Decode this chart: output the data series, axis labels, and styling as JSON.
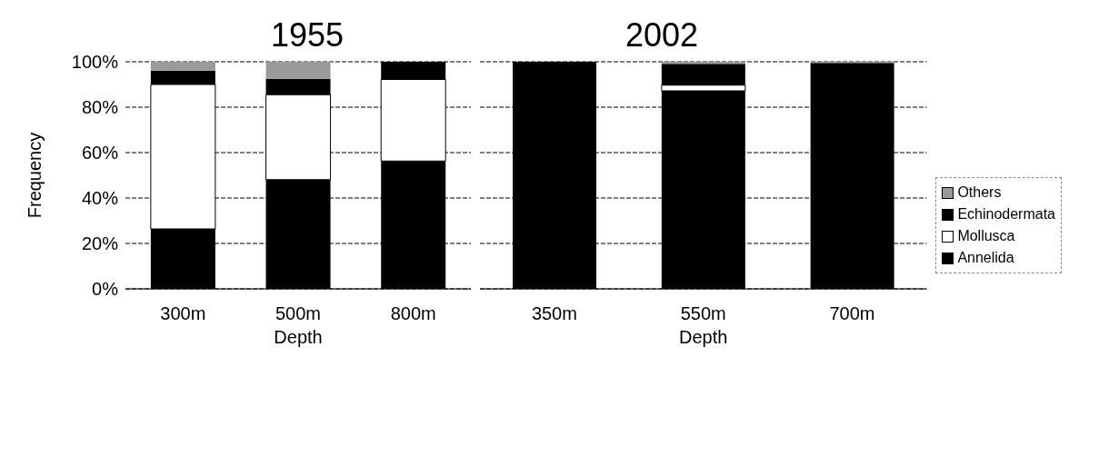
{
  "chart_data": [
    {
      "type": "bar",
      "title": "1955",
      "xlabel": "Depth",
      "ylabel": "Frequency",
      "categories": [
        "300m",
        "500m",
        "800m"
      ],
      "stacked": true,
      "grid": "y",
      "legend": false,
      "ylim": [
        0,
        100
      ],
      "yticks": [
        {
          "value": 0,
          "label": "0%"
        },
        {
          "value": 20,
          "label": "20%"
        },
        {
          "value": 40,
          "label": "40%"
        },
        {
          "value": 60,
          "label": "60%"
        },
        {
          "value": 80,
          "label": "80%"
        },
        {
          "value": 100,
          "label": "100%"
        }
      ],
      "series": [
        {
          "color": "#000000",
          "values": [
            26.4,
            48.1,
            56.3
          ]
        },
        {
          "color": "#ffffff",
          "values": [
            63.6,
            37.4,
            35.9
          ]
        },
        {
          "color": "#000000",
          "values": [
            6.1,
            7.0,
            7.8
          ]
        },
        {
          "color": "#9a9a9a",
          "values": [
            3.9,
            7.5,
            0
          ]
        }
      ]
    },
    {
      "type": "bar",
      "title": "2002",
      "xlabel": "Depth",
      "categories": [
        "350m",
        "550m",
        "700m"
      ],
      "stacked": true,
      "grid": "y",
      "legend": "right",
      "tick_labels": "x",
      "ylim": [
        0,
        100
      ],
      "yticks": [
        {
          "value": 0,
          "label": null
        },
        {
          "value": 20,
          "label": null
        },
        {
          "value": 40,
          "label": null
        },
        {
          "value": 60,
          "label": null
        },
        {
          "value": 80,
          "label": null
        },
        {
          "value": 100,
          "label": null
        }
      ],
      "series": [
        {
          "name": "Annelida",
          "color": "#000000",
          "values": [
            100,
            87.2,
            99.5
          ]
        },
        {
          "name": "Mollusca",
          "color": "#ffffff",
          "values": [
            0,
            2.5,
            0
          ]
        },
        {
          "name": "Echinodermata",
          "color": "#000000",
          "values": [
            0,
            9.4,
            0
          ]
        },
        {
          "name": "Others",
          "color": "#9a9a9a",
          "values": [
            0,
            0.9,
            0.5
          ]
        }
      ]
    }
  ]
}
